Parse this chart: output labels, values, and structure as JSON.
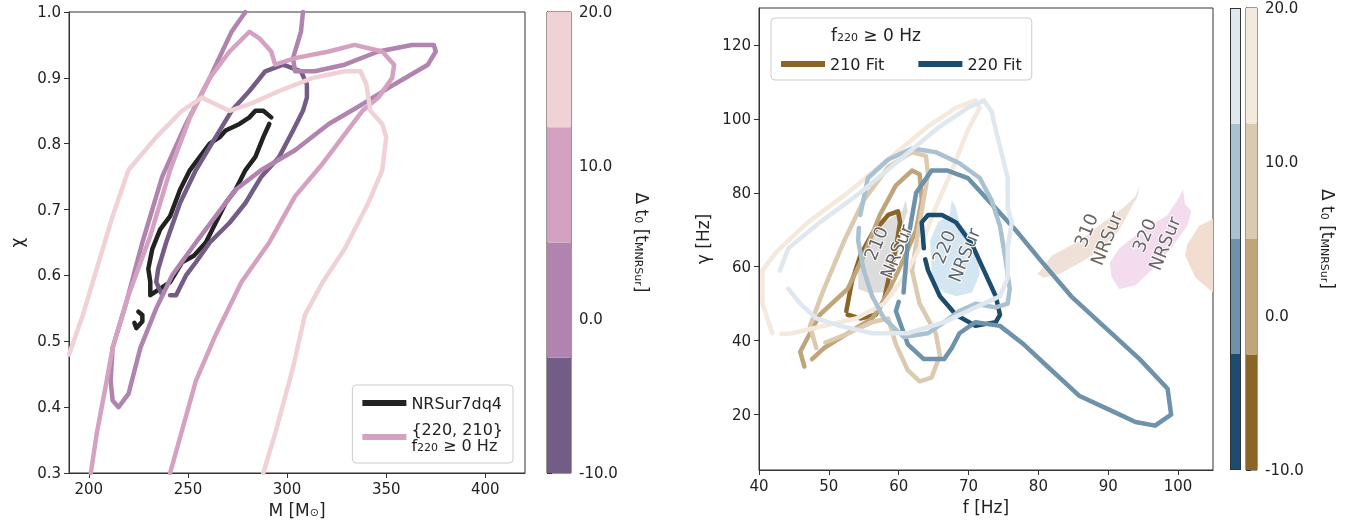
{
  "chart_data": [
    {
      "type": "line",
      "xlabel": "M [M$_{⊙}$]",
      "ylabel": "χ",
      "clabel": "Δ t$_{0}$ [t$_{M}$$_{NRSur}$]",
      "xlim": [
        190,
        420
      ],
      "ylim": [
        0.3,
        1.0
      ],
      "xticks": [
        200,
        250,
        300,
        350,
        400
      ],
      "yticks": [
        0.3,
        0.4,
        0.5,
        0.6,
        0.7,
        0.8,
        0.9,
        {
          "value": 1.0,
          "label": "1.0"
        }
      ],
      "clim": [
        -10,
        20
      ],
      "cticks": [
        {
          "value": -10,
          "label": "-10.0"
        },
        {
          "value": 0,
          "label": "0.0"
        },
        {
          "value": 10,
          "label": "10.0"
        },
        {
          "value": 20,
          "label": "20.0"
        }
      ],
      "legend": "bottom right",
      "series": [
        {
          "name": "NRSur7dq4",
          "color": "#222222",
          "x": [
            292,
            288,
            284,
            281,
            276,
            269,
            266,
            261,
            256,
            251,
            246,
            241,
            236,
            232,
            230,
            231,
            231,
            236,
            241,
            247,
            253,
            259,
            264,
            269,
            274,
            279,
            284,
            288,
            291
          ],
          "values": [
            0.84,
            0.85,
            0.85,
            0.84,
            0.83,
            0.82,
            0.81,
            0.8,
            0.78,
            0.76,
            0.73,
            0.69,
            0.67,
            0.64,
            0.61,
            0.59,
            0.57,
            0.58,
            0.59,
            0.62,
            0.63,
            0.65,
            0.68,
            0.71,
            0.73,
            0.76,
            0.78,
            0.81,
            0.83
          ]
        },
        {
          "color": "#222222",
          "x": [
            225,
            227,
            227,
            224,
            223
          ],
          "values": [
            0.545,
            0.54,
            0.53,
            0.52,
            0.528
          ]
        },
        {
          "color": "#735d86",
          "x": [
            237,
            234,
            235,
            239,
            246,
            254,
            262,
            272,
            281,
            289,
            298,
            307,
            310,
            310,
            308,
            303,
            296,
            287,
            279,
            271,
            261,
            254,
            249,
            244,
            241
          ],
          "values": [
            0.57,
            0.59,
            0.61,
            0.65,
            0.71,
            0.76,
            0.8,
            0.85,
            0.88,
            0.91,
            0.92,
            0.91,
            0.89,
            0.87,
            0.85,
            0.82,
            0.78,
            0.75,
            0.71,
            0.68,
            0.65,
            0.62,
            0.6,
            0.57,
            0.57
          ]
        },
        {
          "color": "#b084ae",
          "x": [
            279,
            272,
            261,
            249,
            237,
            227,
            219,
            212,
            211,
            212,
            215,
            220,
            226,
            234,
            242,
            254,
            264,
            274,
            287,
            304,
            321,
            338,
            354,
            371,
            375,
            374,
            363,
            346,
            329,
            314,
            304,
            303,
            307,
            308
          ],
          "values": [
            1.0,
            0.97,
            0.9,
            0.83,
            0.75,
            0.65,
            0.56,
            0.49,
            0.44,
            0.41,
            0.4,
            0.42,
            0.49,
            0.55,
            0.6,
            0.65,
            0.69,
            0.73,
            0.76,
            0.79,
            0.83,
            0.86,
            0.89,
            0.92,
            0.94,
            0.95,
            0.95,
            0.94,
            0.92,
            0.91,
            0.91,
            0.93,
            0.97,
            1.0
          ]
        },
        {
          "name": "{220, 210}\nf$_{220}$ ≥ 0 Hz",
          "color": "#d5a1c1",
          "x": [
            201,
            204,
            209,
            212,
            220,
            231,
            241,
            251,
            261,
            271,
            281,
            286,
            292,
            294,
            304,
            321,
            334,
            348,
            354,
            353,
            346,
            338,
            328,
            318,
            304,
            291,
            277,
            264,
            254,
            241
          ],
          "values": [
            0.3,
            0.36,
            0.44,
            0.49,
            0.57,
            0.66,
            0.76,
            0.84,
            0.9,
            0.94,
            0.97,
            0.96,
            0.94,
            0.92,
            0.93,
            0.94,
            0.95,
            0.94,
            0.92,
            0.9,
            0.87,
            0.85,
            0.81,
            0.77,
            0.72,
            0.65,
            0.59,
            0.51,
            0.44,
            0.3
          ]
        },
        {
          "color": "#efd1d6",
          "x": [
            190,
            197,
            205,
            212,
            220,
            234,
            247,
            257,
            264,
            271,
            281,
            296,
            313,
            329,
            337,
            340,
            342,
            348,
            350,
            348,
            341,
            329,
            318,
            309,
            303,
            294,
            288
          ],
          "values": [
            0.48,
            0.54,
            0.62,
            0.69,
            0.76,
            0.81,
            0.85,
            0.87,
            0.86,
            0.85,
            0.86,
            0.88,
            0.9,
            0.91,
            0.91,
            0.89,
            0.85,
            0.83,
            0.81,
            0.76,
            0.71,
            0.64,
            0.59,
            0.54,
            0.46,
            0.36,
            0.3
          ]
        }
      ]
    },
    {
      "type": "line",
      "xlabel": "f [Hz]",
      "ylabel": "γ [Hz]",
      "clabel": "Δ t$_{0}$ [t$_{M}$$_{NRSur}$]",
      "xlim": [
        40,
        105
      ],
      "ylim": [
        5,
        130
      ],
      "xticks": [
        40,
        50,
        60,
        70,
        80,
        90,
        100
      ],
      "yticks": [
        20,
        40,
        60,
        80,
        100,
        120
      ],
      "clim": [
        -10,
        20
      ],
      "cticks": [
        {
          "value": -10,
          "label": "-10.0"
        },
        {
          "value": 0,
          "label": "0.0"
        },
        {
          "value": 10,
          "label": "10.0"
        },
        {
          "value": 20,
          "label": "20.0"
        }
      ],
      "legend": "top left",
      "legend_title": "f$_{220}$ ≥ 0 Hz",
      "annotations": [
        "210\nNRSur",
        "220\nNRSur",
        "310\nNRSur",
        "320\nNRSur"
      ],
      "series": [
        {
          "name": "210 Fit",
          "color": "#8b6428",
          "x": [
            52.5,
            53.3,
            54.5,
            56.2,
            58.5,
            59.9,
            60.2,
            59.6,
            58.7,
            57.9,
            56.7,
            54.5,
            52.7
          ],
          "values": [
            48,
            56,
            63,
            69,
            74,
            75,
            72,
            65,
            58,
            51,
            47,
            46,
            47
          ]
        },
        {
          "color": "#c0a47a",
          "x": [
            46.5,
            45.9,
            48.7,
            52.7,
            55.0,
            57.3,
            59.6,
            61.9,
            63.0,
            63.3,
            62.5,
            60.7,
            58.7,
            57.3,
            56.2,
            52.7,
            49.3,
            47.6
          ],
          "values": [
            33,
            37,
            47,
            54,
            63,
            74,
            82,
            86,
            85,
            78,
            70,
            62,
            54,
            49,
            46,
            42,
            38,
            35
          ]
        },
        {
          "color": "#dccab0",
          "x": [
            48.2,
            47.3,
            49.3,
            52.2,
            55.0,
            58.5,
            61.9,
            63.9,
            64.2,
            63.0,
            61.9,
            63.0,
            65.3,
            65.9,
            64.7,
            63.0,
            61.3,
            59.6,
            58.5,
            56.2,
            51.6,
            49.5
          ],
          "values": [
            38,
            44,
            54,
            67,
            78,
            87,
            91,
            90,
            85,
            72,
            59,
            50,
            42,
            36,
            30,
            29,
            32,
            39,
            46,
            45,
            41,
            39.5
          ]
        },
        {
          "color": "#f3e9dc",
          "x": [
            41.9,
            40.5,
            40.5,
            42.5,
            47.0,
            52.7,
            58.5,
            64.2,
            68.2,
            71.0,
            71.6,
            69.9,
            67.6,
            65.3,
            63.0,
            60.7,
            57.9,
            53.9,
            49.3,
            44.7,
            43.2
          ],
          "values": [
            42,
            50,
            59,
            64,
            72,
            80,
            89,
            98,
            103,
            105,
            103,
            97,
            86,
            76,
            65,
            57,
            50,
            46,
            44,
            42,
            41.8
          ]
        },
        {
          "name": "220 Fit",
          "color": "#1d4d6e",
          "x": [
            63.6,
            63.3,
            64.2,
            66.2,
            68.2,
            70.5,
            72.2,
            73.9,
            74.5,
            73.9,
            71.0,
            68.2,
            65.9,
            64.2,
            63.8
          ],
          "values": [
            65,
            72,
            74,
            74,
            72,
            66,
            59,
            52,
            47,
            45,
            44,
            47,
            52,
            59,
            62
          ]
        },
        {
          "color": "#6d92aa",
          "x": [
            60.7,
            61.3,
            62.5,
            64.7,
            67.0,
            69.9,
            73.3,
            76.7,
            80.2,
            84.7,
            89.3,
            94.5,
            98.5,
            99.0,
            96.7,
            93.9,
            90.5,
            85.9,
            81.3,
            77.9,
            74.5,
            71.0,
            68.7,
            67.6,
            66.5,
            63.6,
            61.3,
            59.6,
            60.0
          ],
          "values": [
            53,
            67,
            80,
            86,
            86,
            84,
            77,
            70,
            62,
            52,
            44,
            35,
            27,
            20,
            17,
            18,
            21,
            25,
            33,
            39,
            44,
            45,
            42,
            38,
            35,
            35,
            39,
            48,
            50.5
          ]
        },
        {
          "color": "#a9c1d1",
          "x": [
            54.5,
            55.6,
            58.5,
            61.9,
            65.3,
            68.7,
            71.6,
            73.3,
            74.5,
            75.3,
            75.9,
            75.6,
            73.9,
            71.0,
            68.7,
            66.5,
            64.2,
            60.7,
            57.9,
            56.2,
            55.0,
            54.2,
            54.3
          ],
          "values": [
            74,
            84,
            89,
            92,
            91,
            88,
            84,
            78,
            71,
            62,
            54,
            50,
            49,
            50,
            48,
            45,
            42,
            41,
            46,
            52,
            59,
            67,
            70.5
          ]
        },
        {
          "color": "#dfe8ef",
          "x": [
            43.0,
            44.2,
            48.7,
            54.5,
            60.2,
            65.9,
            69.9,
            72.2,
            73.3,
            73.9,
            74.7,
            75.6,
            75.6,
            76.2,
            75.6,
            75.6,
            74.5,
            71.0,
            66.5,
            61.3,
            56.2,
            51.6,
            48.2,
            45.9,
            44.2
          ],
          "values": [
            59,
            65,
            72,
            80,
            89,
            98,
            103,
            105,
            102,
            97,
            91,
            84,
            76,
            72,
            65,
            57,
            52,
            49,
            45,
            42,
            42,
            44,
            46,
            50,
            54
          ]
        },
        {
          "type": "area",
          "color": "#dcdcdc",
          "x": [
            54.2,
            54.2,
            55.6,
            57.9,
            60.5,
            61.0,
            61.3,
            60.7,
            60.2,
            59.0,
            57.9,
            55.6
          ],
          "values": [
            54,
            61,
            67,
            72,
            75,
            78,
            75,
            72,
            65,
            58,
            53,
            53
          ]
        },
        {
          "type": "area",
          "color": "#d4e6f1",
          "x": [
            64.7,
            64.5,
            65.6,
            67.3,
            67.6,
            68.2,
            68.7,
            70.5,
            71.3,
            71.6,
            70.5,
            68.2,
            66.5,
            65.3
          ],
          "values": [
            59,
            67,
            72,
            74,
            78,
            76,
            72,
            68,
            63,
            58,
            53,
            52,
            53,
            55
          ]
        },
        {
          "type": "area",
          "color": "#efe0d8",
          "x": [
            79.9,
            81.9,
            85.9,
            89.3,
            92.2,
            93.9,
            94.5,
            94.2,
            93.3,
            91.6,
            89.3,
            85.9,
            83.0,
            80.7
          ],
          "values": [
            58,
            63,
            67,
            72,
            76,
            79,
            82,
            79,
            76,
            70,
            65,
            61,
            58,
            57
          ]
        },
        {
          "type": "area",
          "color": "#f2dcee",
          "x": [
            90.5,
            90.2,
            91.6,
            95.0,
            98.5,
            100.2,
            100.7,
            101.0,
            101.9,
            101.3,
            99.0,
            96.7,
            93.9,
            91.6
          ],
          "values": [
            57,
            61,
            65,
            70,
            74,
            79,
            81,
            77,
            75,
            71,
            65,
            60,
            55,
            54
          ]
        },
        {
          "type": "area",
          "color": "#f3ddd0",
          "x": [
            105,
            103.0,
            101.3,
            101.0,
            102.5,
            105
          ],
          "values": [
            73,
            71,
            66,
            63,
            57,
            53
          ]
        }
      ]
    }
  ]
}
